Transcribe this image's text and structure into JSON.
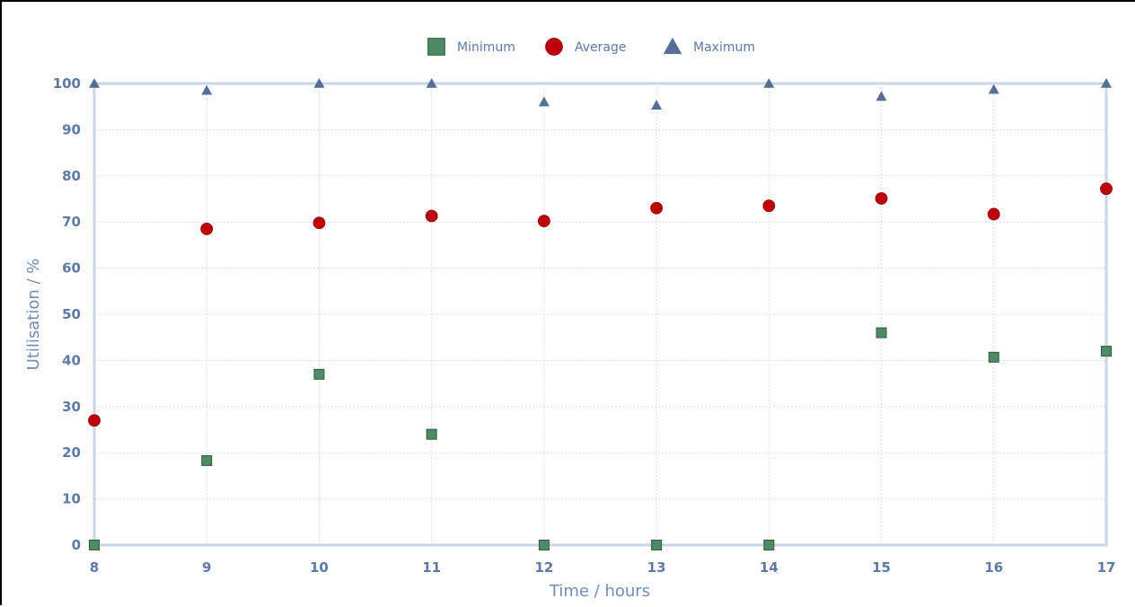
{
  "chart_data": {
    "type": "scatter",
    "title": "",
    "xlabel": "Time / hours",
    "ylabel": "Utilisation / %",
    "xlim": [
      8,
      17
    ],
    "ylim": [
      0,
      100
    ],
    "x_ticks": [
      "8",
      "9",
      "10",
      "11",
      "12",
      "13",
      "14",
      "15",
      "16",
      "17"
    ],
    "y_ticks": [
      "0",
      "10",
      "20",
      "30",
      "40",
      "50",
      "60",
      "70",
      "80",
      "90",
      "100"
    ],
    "grid": true,
    "legend_position": "top-center",
    "x": [
      8,
      9,
      10,
      11,
      12,
      13,
      14,
      15,
      16,
      17
    ],
    "series": [
      {
        "name": "Minimum",
        "marker": "square",
        "color": "#4e8a64",
        "values": [
          0,
          18.3,
          37,
          24,
          0,
          0,
          0,
          46,
          40.7,
          42
        ]
      },
      {
        "name": "Average",
        "marker": "circle",
        "color": "#c0000b",
        "values": [
          27,
          68.5,
          69.8,
          71.3,
          70.2,
          73,
          73.5,
          75.1,
          71.7,
          77.2
        ]
      },
      {
        "name": "Maximum",
        "marker": "triangle",
        "color": "#546e94",
        "values": [
          100,
          98.5,
          100,
          100,
          96,
          95.3,
          100,
          97.2,
          98.7,
          100
        ]
      }
    ]
  }
}
